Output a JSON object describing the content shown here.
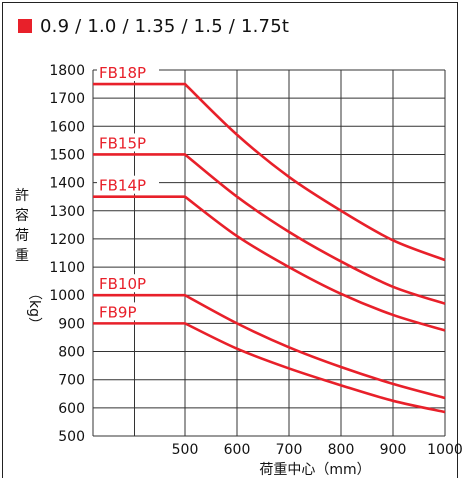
{
  "header": {
    "marker_color": "#e8202a",
    "title": "0.9 / 1.0 / 1.35 / 1.5 / 1.75t"
  },
  "chart_data": {
    "type": "line",
    "title": "0.9 / 1.0 / 1.35 / 1.5 / 1.75t",
    "xlabel": "荷重中心（mm）",
    "ylabel_chars": [
      "許",
      "容",
      "荷",
      "重",
      "（kg）"
    ],
    "xlim": [
      500,
      1000
    ],
    "ylim": [
      500,
      1800
    ],
    "x_ticks": [
      500,
      600,
      700,
      800,
      900,
      1000
    ],
    "y_ticks": [
      500,
      600,
      700,
      800,
      900,
      1000,
      1100,
      1200,
      1300,
      1400,
      1500,
      1600,
      1700,
      1800
    ],
    "grid": true,
    "line_color": "#e8202a",
    "series": [
      {
        "name": "FB18P",
        "x": [
          500,
          600,
          700,
          800,
          900,
          1000
        ],
        "y": [
          1750,
          1570,
          1420,
          1300,
          1195,
          1125
        ]
      },
      {
        "name": "FB15P",
        "x": [
          500,
          600,
          700,
          800,
          900,
          1000
        ],
        "y": [
          1500,
          1350,
          1225,
          1120,
          1030,
          970
        ]
      },
      {
        "name": "FB14P",
        "x": [
          500,
          600,
          700,
          800,
          900,
          1000
        ],
        "y": [
          1350,
          1210,
          1100,
          1005,
          930,
          875
        ]
      },
      {
        "name": "FB10P",
        "x": [
          500,
          600,
          700,
          800,
          900,
          1000
        ],
        "y": [
          1000,
          900,
          815,
          745,
          685,
          635
        ]
      },
      {
        "name": "FB9P",
        "x": [
          500,
          600,
          700,
          800,
          900,
          1000
        ],
        "y": [
          900,
          810,
          740,
          680,
          625,
          585
        ]
      }
    ]
  }
}
